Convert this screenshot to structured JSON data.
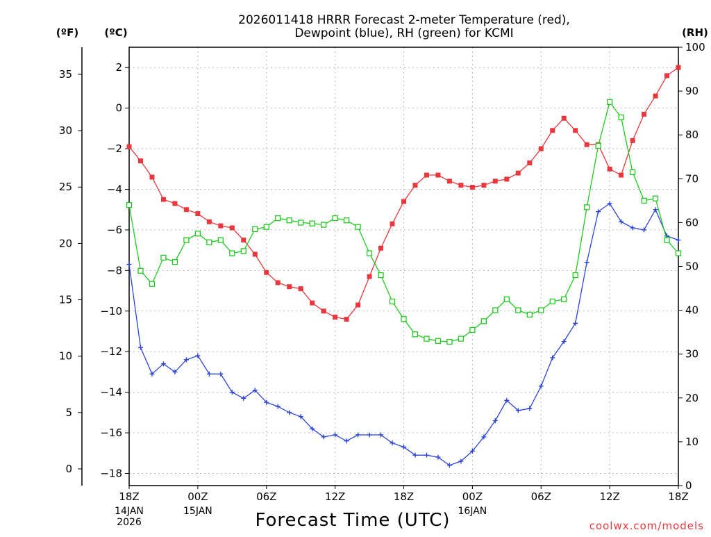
{
  "header": {
    "title_line1": "2026011418 HRRR Forecast 2-meter Temperature (red),",
    "title_line2": "Dewpoint (blue), RH (green) for KCMI"
  },
  "units": {
    "fahrenheit": "(ºF)",
    "celsius": "(ºC)",
    "rh": "(RH)"
  },
  "x_axis": {
    "title": "Forecast Time (UTC)",
    "tick_labels": [
      "18Z",
      "00Z",
      "06Z",
      "12Z",
      "18Z",
      "00Z",
      "06Z",
      "12Z",
      "18Z"
    ],
    "tick_hours": [
      0,
      6,
      12,
      18,
      24,
      30,
      36,
      42,
      48
    ],
    "date_labels": [
      {
        "hour": 0,
        "lines": [
          "14JAN",
          "2026"
        ]
      },
      {
        "hour": 6,
        "lines": [
          "15JAN"
        ]
      },
      {
        "hour": 30,
        "lines": [
          "16JAN"
        ]
      }
    ]
  },
  "credit": "coolwx.com/models",
  "colors": {
    "temperature": "#e8383d",
    "dewpoint": "#2b44d8",
    "rh": "#21c821",
    "grid": "#b8b8b8"
  },
  "chart_data": {
    "type": "line",
    "title": "2026011418 HRRR Forecast 2-meter Temperature (red), Dewpoint (blue), RH (green) for KCMI",
    "xlabel": "Forecast Time (UTC)",
    "x_units": "forecast hour from 2026-01-14 18Z",
    "x": [
      0,
      1,
      2,
      3,
      4,
      5,
      6,
      7,
      8,
      9,
      10,
      11,
      12,
      13,
      14,
      15,
      16,
      17,
      18,
      19,
      20,
      21,
      22,
      23,
      24,
      25,
      26,
      27,
      28,
      29,
      30,
      31,
      32,
      33,
      34,
      35,
      36,
      37,
      38,
      39,
      40,
      41,
      42,
      43,
      44,
      45,
      46,
      47,
      48
    ],
    "xlim": [
      0,
      48
    ],
    "celsius_axis": {
      "label": "(ºC)",
      "range": [
        -18.6,
        3.0
      ],
      "ticks": [
        2,
        0,
        -2,
        -4,
        -6,
        -8,
        -10,
        -12,
        -14,
        -16,
        -18
      ]
    },
    "fahrenheit_axis": {
      "label": "(ºF)",
      "ticks": [
        35,
        30,
        25,
        20,
        15,
        10,
        5,
        0
      ]
    },
    "rh_axis": {
      "label": "(RH)",
      "range": [
        0,
        100
      ],
      "ticks": [
        100,
        90,
        80,
        70,
        60,
        50,
        40,
        30,
        20,
        10,
        0
      ]
    },
    "grid": true,
    "series": [
      {
        "name": "2-meter Temperature (red)",
        "axis": "celsius",
        "marker": "filled-square",
        "values": [
          -1.9,
          -2.6,
          -3.4,
          -4.5,
          -4.7,
          -5.0,
          -5.2,
          -5.6,
          -5.8,
          -5.9,
          -6.5,
          -7.2,
          -8.1,
          -8.6,
          -8.8,
          -8.9,
          -9.6,
          -10.0,
          -10.3,
          -10.4,
          -9.7,
          -8.3,
          -6.9,
          -5.7,
          -4.6,
          -3.8,
          -3.3,
          -3.3,
          -3.6,
          -3.8,
          -3.9,
          -3.8,
          -3.6,
          -3.5,
          -3.2,
          -2.7,
          -2.0,
          -1.1,
          -0.5,
          -1.1,
          -1.8,
          -1.8,
          -3.0,
          -3.3,
          -1.6,
          -0.3,
          0.6,
          1.6,
          2.0
        ]
      },
      {
        "name": "Dewpoint (blue)",
        "axis": "celsius",
        "marker": "plus",
        "values": [
          -7.7,
          -11.8,
          -13.1,
          -12.6,
          -13.0,
          -12.4,
          -12.2,
          -13.1,
          -13.1,
          -14.0,
          -14.3,
          -13.9,
          -14.5,
          -14.7,
          -15.0,
          -15.2,
          -15.8,
          -16.2,
          -16.1,
          -16.4,
          -16.1,
          -16.1,
          -16.1,
          -16.5,
          -16.7,
          -17.1,
          -17.1,
          -17.2,
          -17.6,
          -17.4,
          -16.9,
          -16.2,
          -15.4,
          -14.4,
          -14.9,
          -14.8,
          -13.7,
          -12.3,
          -11.5,
          -10.6,
          -7.6,
          -5.1,
          -4.7,
          -5.6,
          -5.9,
          -6.0,
          -5.0,
          -6.3,
          -6.5
        ]
      },
      {
        "name": "RH (green)",
        "axis": "rh",
        "marker": "open-square",
        "values": [
          64,
          49,
          46,
          52,
          51,
          56,
          57.5,
          55.5,
          56,
          53,
          53.5,
          58.5,
          59,
          61,
          60.5,
          60,
          59.8,
          59.5,
          61,
          60.5,
          59,
          53,
          48,
          42,
          38,
          34.5,
          33.5,
          33,
          32.8,
          33.5,
          35.5,
          37.5,
          40,
          42.5,
          40,
          39,
          40,
          42,
          42.5,
          48,
          63.5,
          77.5,
          87.5,
          84,
          71.5,
          65,
          65.5,
          56,
          53
        ]
      }
    ]
  }
}
